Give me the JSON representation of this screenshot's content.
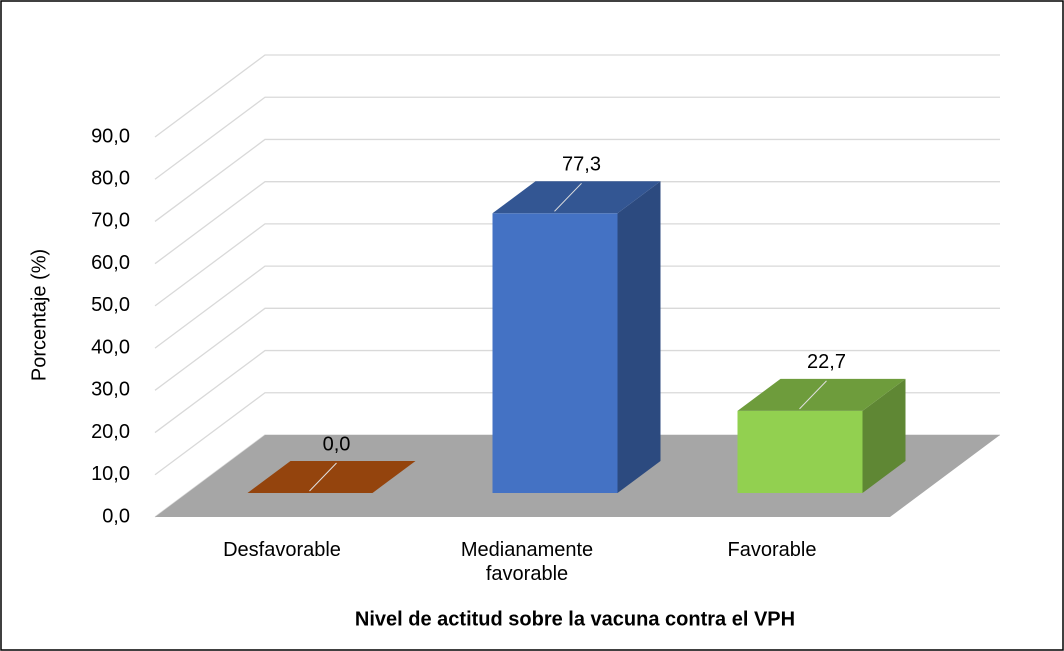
{
  "chart_data": {
    "type": "bar3d",
    "y_label": "Porcentaje (%)",
    "x_label": "Nivel de actitud sobre la vacuna contra el VPH",
    "categories": [
      "Desfavorable",
      "Medianamente favorable",
      "Favorable"
    ],
    "values": [
      0.0,
      77.3,
      22.7
    ],
    "value_labels": [
      "0,0",
      "77,3",
      "22,7"
    ],
    "colors": [
      "#c55a11",
      "#4472c4",
      "#92d050"
    ],
    "ylim": [
      0,
      90
    ],
    "yticks": [
      {
        "value": 0,
        "label": "0,0"
      },
      {
        "value": 10,
        "label": "10,0"
      },
      {
        "value": 20,
        "label": "20,0"
      },
      {
        "value": 30,
        "label": "30,0"
      },
      {
        "value": 40,
        "label": "40,0"
      },
      {
        "value": 50,
        "label": "50,0"
      },
      {
        "value": 60,
        "label": "60,0"
      },
      {
        "value": 70,
        "label": "70,0"
      },
      {
        "value": 80,
        "label": "80,0"
      },
      {
        "value": 90,
        "label": "90,0"
      }
    ],
    "grid": true
  }
}
